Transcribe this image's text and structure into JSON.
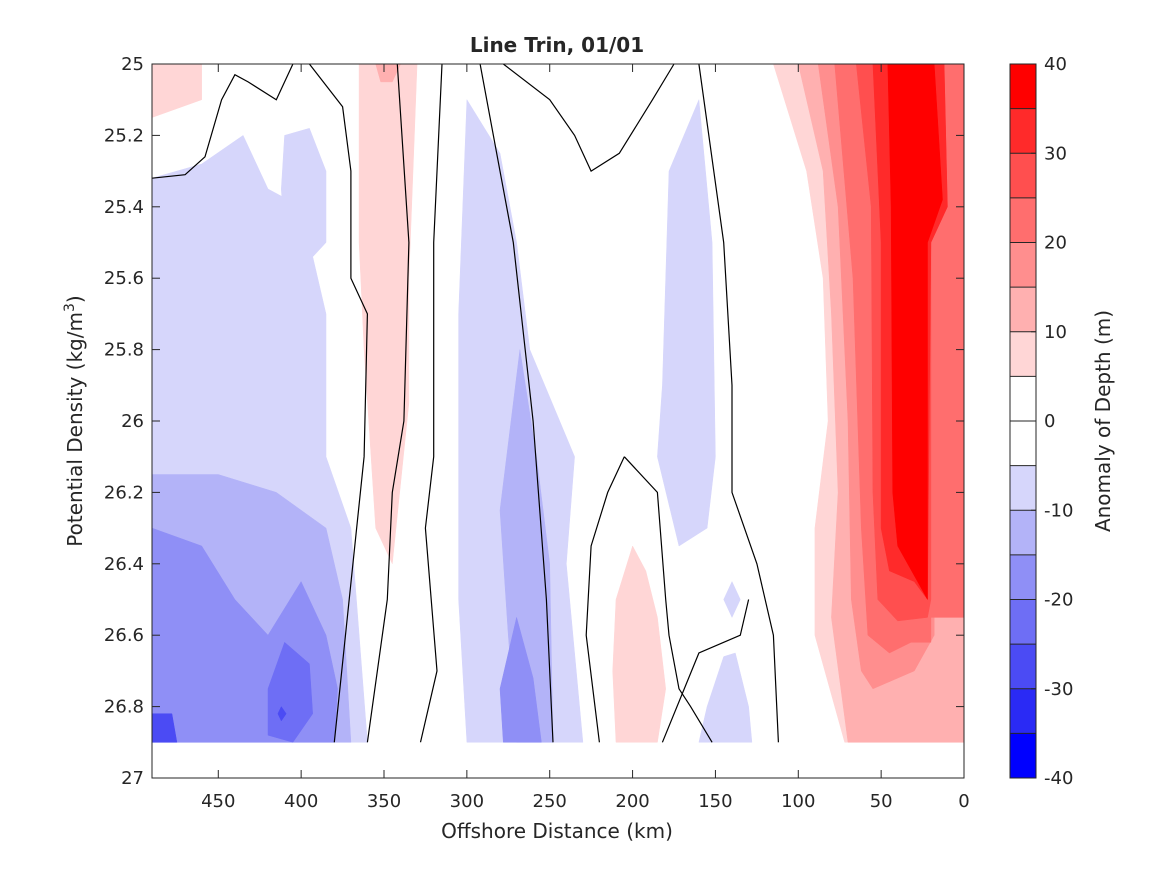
{
  "chart_data": {
    "type": "contour",
    "title": "Line Trin, 01/01",
    "xlabel": "Offshore Distance (km)",
    "ylabel": "Potential Density (kg/m",
    "ylabel_sup": "3",
    "ylabel_end": ")",
    "colorbar_label": "Anomaly of Depth (m)",
    "x_reversed": true,
    "y_reversed": true,
    "xlim": [
      490,
      0
    ],
    "ylim": [
      25,
      27
    ],
    "x_ticks": [
      450,
      400,
      350,
      300,
      250,
      200,
      150,
      100,
      50,
      0
    ],
    "y_ticks": [
      25,
      25.2,
      25.4,
      25.6,
      25.8,
      26,
      26.2,
      26.4,
      26.6,
      26.8,
      27
    ],
    "x_tick_labels": [
      "450",
      "400",
      "350",
      "300",
      "250",
      "200",
      "150",
      "100",
      "50",
      "0"
    ],
    "y_tick_labels": [
      "25",
      "25.2",
      "25.4",
      "25.6",
      "25.8",
      "26",
      "26.2",
      "26.4",
      "26.6",
      "26.8",
      "27"
    ],
    "colorbar_ticks": [
      40,
      30,
      20,
      10,
      0,
      -10,
      -20,
      -30,
      -40
    ],
    "colorbar_tick_labels": [
      "40",
      "30",
      "20",
      "10",
      "0",
      "-10",
      "-20",
      "-30",
      "-40"
    ],
    "colorbar_levels": [
      40,
      35,
      30,
      25,
      20,
      15,
      10,
      5,
      -5,
      -10,
      -15,
      -20,
      -25,
      -30,
      -35,
      -40
    ],
    "colorbar_colors": [
      "#ff0000",
      "#ff2a2a",
      "#ff4f4f",
      "#ff6e6e",
      "#ff8e8e",
      "#ffb0b0",
      "#ffd6d6",
      "#ffffff",
      "#ffffff",
      "#d6d6fb",
      "#b3b3f8",
      "#8f8ff6",
      "#6e6ef5",
      "#4b4bf4",
      "#2a2af5",
      "#0000ff"
    ],
    "data_bottom_density": 26.9,
    "grid": false,
    "contour_regions": [
      {
        "level": 5,
        "color": "#ffd6d6",
        "points": [
          [
            490,
            25
          ],
          [
            460,
            25
          ],
          [
            460,
            25.1
          ],
          [
            490,
            25.15
          ]
        ]
      },
      {
        "level": -5,
        "color": "#d6d6fb",
        "points": [
          [
            490,
            25.32
          ],
          [
            460,
            25.28
          ],
          [
            435,
            25.2
          ],
          [
            420,
            25.35
          ],
          [
            400,
            25.4
          ],
          [
            385,
            25.7
          ],
          [
            385,
            26.1
          ],
          [
            370,
            26.3
          ],
          [
            360,
            26.9
          ],
          [
            490,
            26.9
          ]
        ]
      },
      {
        "level": -5,
        "color": "#d6d6fb",
        "points": [
          [
            410,
            25.2
          ],
          [
            395,
            25.18
          ],
          [
            385,
            25.3
          ],
          [
            385,
            25.5
          ],
          [
            395,
            25.55
          ],
          [
            410,
            25.5
          ],
          [
            412,
            25.35
          ]
        ]
      },
      {
        "level": -10,
        "color": "#b3b3f8",
        "points": [
          [
            490,
            26.15
          ],
          [
            450,
            26.15
          ],
          [
            415,
            26.2
          ],
          [
            385,
            26.3
          ],
          [
            375,
            26.5
          ],
          [
            370,
            26.9
          ],
          [
            490,
            26.9
          ]
        ]
      },
      {
        "level": -15,
        "color": "#8f8ff6",
        "points": [
          [
            490,
            26.3
          ],
          [
            460,
            26.35
          ],
          [
            440,
            26.5
          ],
          [
            420,
            26.6
          ],
          [
            400,
            26.45
          ],
          [
            385,
            26.6
          ],
          [
            378,
            26.75
          ],
          [
            380,
            26.9
          ],
          [
            490,
            26.9
          ]
        ]
      },
      {
        "level": -20,
        "color": "#6e6ef5",
        "points": [
          [
            420,
            26.75
          ],
          [
            410,
            26.62
          ],
          [
            395,
            26.68
          ],
          [
            393,
            26.82
          ],
          [
            405,
            26.9
          ],
          [
            420,
            26.88
          ]
        ]
      },
      {
        "level": -25,
        "color": "#4b4bf4",
        "points": [
          [
            412,
            26.8
          ],
          [
            409,
            26.82
          ],
          [
            412,
            26.84
          ],
          [
            414,
            26.82
          ]
        ]
      },
      {
        "level": -25,
        "color": "#4b4bf4",
        "points": [
          [
            490,
            26.82
          ],
          [
            478,
            26.82
          ],
          [
            475,
            26.9
          ],
          [
            490,
            26.9
          ]
        ]
      },
      {
        "level": 5,
        "color": "#ffd6d6",
        "points": [
          [
            365,
            25
          ],
          [
            330,
            25
          ],
          [
            335,
            25.6
          ],
          [
            335,
            25.95
          ],
          [
            345,
            26.4
          ],
          [
            355,
            26.3
          ],
          [
            362,
            25.8
          ],
          [
            365,
            25.5
          ]
        ]
      },
      {
        "level": 10,
        "color": "#ffb0b0",
        "points": [
          [
            355,
            25
          ],
          [
            340,
            25
          ],
          [
            345,
            25.05
          ],
          [
            352,
            25.05
          ]
        ]
      },
      {
        "level": -5,
        "color": "#d6d6fb",
        "points": [
          [
            300,
            25.1
          ],
          [
            280,
            25.25
          ],
          [
            270,
            25.5
          ],
          [
            262,
            25.8
          ],
          [
            235,
            26.1
          ],
          [
            240,
            26.4
          ],
          [
            230,
            26.9
          ],
          [
            300,
            26.9
          ],
          [
            305,
            26.5
          ],
          [
            305,
            25.7
          ]
        ]
      },
      {
        "level": -10,
        "color": "#b3b3f8",
        "points": [
          [
            268,
            25.8
          ],
          [
            280,
            26.25
          ],
          [
            275,
            26.6
          ],
          [
            270,
            26.9
          ],
          [
            248,
            26.9
          ],
          [
            250,
            26.4
          ],
          [
            258,
            26.1
          ]
        ]
      },
      {
        "level": -15,
        "color": "#8f8ff6",
        "points": [
          [
            270,
            26.55
          ],
          [
            280,
            26.75
          ],
          [
            278,
            26.9
          ],
          [
            255,
            26.9
          ],
          [
            260,
            26.72
          ]
        ]
      },
      {
        "level": -5,
        "color": "#d6d6fb",
        "points": [
          [
            160,
            25.1
          ],
          [
            178,
            25.3
          ],
          [
            182,
            25.9
          ],
          [
            185,
            26.1
          ],
          [
            172,
            26.35
          ],
          [
            155,
            26.3
          ],
          [
            150,
            26.1
          ],
          [
            152,
            25.5
          ]
        ]
      },
      {
        "level": -5,
        "color": "#d6d6fb",
        "points": [
          [
            140,
            26.45
          ],
          [
            135,
            26.5
          ],
          [
            140,
            26.55
          ],
          [
            145,
            26.5
          ]
        ]
      },
      {
        "level": -5,
        "color": "#d6d6fb",
        "points": [
          [
            138,
            26.65
          ],
          [
            130,
            26.8
          ],
          [
            128,
            26.9
          ],
          [
            160,
            26.9
          ],
          [
            155,
            26.8
          ],
          [
            145,
            26.66
          ]
        ]
      },
      {
        "level": 5,
        "color": "#ffd6d6",
        "points": [
          [
            200,
            26.35
          ],
          [
            210,
            26.5
          ],
          [
            212,
            26.7
          ],
          [
            210,
            26.9
          ],
          [
            185,
            26.9
          ],
          [
            180,
            26.75
          ],
          [
            185,
            26.55
          ],
          [
            192,
            26.42
          ]
        ]
      },
      {
        "level": 5,
        "color": "#ffd6d6",
        "points": [
          [
            115,
            25
          ],
          [
            95,
            25.3
          ],
          [
            85,
            25.6
          ],
          [
            82,
            26.0
          ],
          [
            90,
            26.3
          ],
          [
            90,
            26.6
          ],
          [
            72,
            26.9
          ],
          [
            0,
            26.9
          ],
          [
            0,
            25
          ]
        ]
      },
      {
        "level": 10,
        "color": "#ffb0b0",
        "points": [
          [
            100,
            25
          ],
          [
            85,
            25.3
          ],
          [
            80,
            25.7
          ],
          [
            76,
            26.2
          ],
          [
            80,
            26.55
          ],
          [
            70,
            26.9
          ],
          [
            0,
            26.9
          ],
          [
            0,
            25
          ]
        ]
      },
      {
        "level": 15,
        "color": "#ff8e8e",
        "points": [
          [
            88,
            25
          ],
          [
            76,
            25.4
          ],
          [
            70,
            26.0
          ],
          [
            68,
            26.5
          ],
          [
            62,
            26.7
          ],
          [
            55,
            26.75
          ],
          [
            30,
            26.7
          ],
          [
            18,
            26.6
          ],
          [
            18,
            26.5
          ],
          [
            0,
            26.5
          ],
          [
            0,
            25
          ]
        ]
      },
      {
        "level": 20,
        "color": "#ff6e6e",
        "points": [
          [
            78,
            25
          ],
          [
            67,
            25.6
          ],
          [
            62,
            26.3
          ],
          [
            58,
            26.6
          ],
          [
            45,
            26.65
          ],
          [
            32,
            26.62
          ],
          [
            20,
            26.62
          ],
          [
            20,
            26.55
          ],
          [
            0,
            26.55
          ],
          [
            0,
            25
          ]
        ]
      },
      {
        "level": 25,
        "color": "#ff4f4f",
        "points": [
          [
            65,
            25
          ],
          [
            56,
            25.4
          ],
          [
            55,
            26.2
          ],
          [
            52,
            26.5
          ],
          [
            40,
            26.56
          ],
          [
            22,
            26.55
          ],
          [
            20,
            26.5
          ],
          [
            20,
            25.5
          ],
          [
            10,
            25.4
          ],
          [
            12,
            25.0
          ]
        ]
      },
      {
        "level": 30,
        "color": "#ff2a2a",
        "points": [
          [
            55,
            25
          ],
          [
            50,
            25.5
          ],
          [
            50,
            26.3
          ],
          [
            45,
            26.42
          ],
          [
            30,
            26.45
          ],
          [
            22,
            26.5
          ],
          [
            20,
            25.5
          ],
          [
            10,
            25.4
          ],
          [
            12,
            25.0
          ]
        ]
      },
      {
        "level": 35,
        "color": "#ff0000",
        "points": [
          [
            46,
            25
          ],
          [
            44,
            25.4
          ],
          [
            43,
            26.2
          ],
          [
            40,
            26.35
          ],
          [
            28,
            26.45
          ],
          [
            22,
            26.5
          ],
          [
            22,
            25.5
          ],
          [
            13,
            25.38
          ],
          [
            18,
            25.0
          ]
        ]
      }
    ],
    "zero_contours": [
      [
        [
          490,
          25.32
        ],
        [
          470,
          25.31
        ],
        [
          458,
          25.26
        ],
        [
          448,
          25.1
        ],
        [
          440,
          25.03
        ],
        [
          432,
          25.05
        ],
        [
          415,
          25.1
        ],
        [
          405,
          25.0
        ]
      ],
      [
        [
          395,
          25.0
        ],
        [
          375,
          25.12
        ],
        [
          370,
          25.3
        ],
        [
          370,
          25.6
        ],
        [
          360,
          25.7
        ],
        [
          362,
          26.1
        ],
        [
          380,
          26.9
        ]
      ],
      [
        [
          315,
          25.0
        ],
        [
          320,
          25.5
        ],
        [
          320,
          26.1
        ],
        [
          325,
          26.3
        ],
        [
          318,
          26.7
        ],
        [
          328,
          26.9
        ]
      ],
      [
        [
          342,
          25.0
        ],
        [
          335,
          25.5
        ],
        [
          338,
          26.0
        ],
        [
          345,
          26.2
        ],
        [
          348,
          26.5
        ],
        [
          360,
          26.9
        ]
      ],
      [
        [
          292,
          25.0
        ],
        [
          280,
          25.3
        ],
        [
          272,
          25.5
        ],
        [
          260,
          26.0
        ],
        [
          252,
          26.5
        ],
        [
          248,
          26.9
        ]
      ],
      [
        [
          278,
          25.0
        ],
        [
          250,
          25.1
        ],
        [
          235,
          25.2
        ],
        [
          225,
          25.3
        ],
        [
          208,
          25.25
        ],
        [
          188,
          25.1
        ],
        [
          175,
          25.0
        ]
      ],
      [
        [
          205,
          26.1
        ],
        [
          215,
          26.2
        ],
        [
          225,
          26.35
        ],
        [
          228,
          26.6
        ],
        [
          220,
          26.9
        ]
      ],
      [
        [
          205,
          26.1
        ],
        [
          185,
          26.2
        ],
        [
          180,
          26.5
        ],
        [
          178,
          26.6
        ],
        [
          172,
          26.75
        ],
        [
          165,
          26.8
        ],
        [
          152,
          26.9
        ]
      ],
      [
        [
          160,
          25.0
        ],
        [
          145,
          25.5
        ],
        [
          140,
          25.9
        ],
        [
          140,
          26.2
        ],
        [
          125,
          26.4
        ],
        [
          115,
          26.6
        ],
        [
          112,
          26.9
        ]
      ],
      [
        [
          130,
          26.5
        ],
        [
          135,
          26.6
        ],
        [
          145,
          26.62
        ],
        [
          160,
          26.65
        ],
        [
          182,
          26.9
        ]
      ]
    ]
  }
}
